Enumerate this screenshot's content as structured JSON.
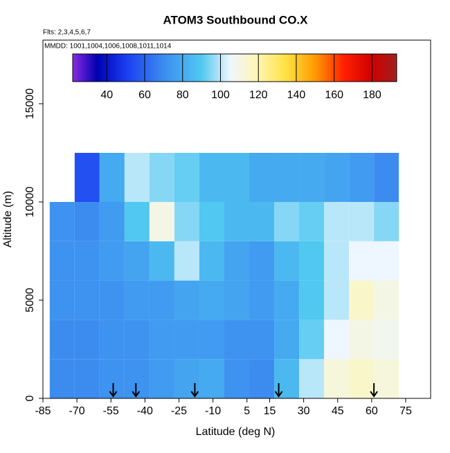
{
  "chart_data": {
    "type": "heatmap",
    "title": "ATOM3 Southbound CO.X",
    "subtitle": "Flts: 2,3,4,5,6,7",
    "annotation": "MMDD: 1001,1004,1006,1008,1011,1014",
    "x_label": "Latitude (deg N)",
    "y_label": "Altitude (m)",
    "xlim": [
      -85,
      86
    ],
    "ylim": [
      0,
      18240
    ],
    "xticks": [
      -85,
      -70,
      -55,
      -40,
      -25,
      -10,
      5,
      15,
      30,
      45,
      60,
      75
    ],
    "yticks": [
      0,
      5000,
      10000,
      15000
    ],
    "lat_edges": [
      -82,
      -71,
      -60,
      -49,
      -38,
      -27,
      -16,
      -5,
      6,
      17,
      28,
      39,
      50,
      61,
      72
    ],
    "alt_edges": [
      0,
      2000,
      4000,
      6000,
      8000,
      10000,
      12500
    ],
    "values": [
      [
        70,
        70,
        72,
        72,
        75,
        78,
        80,
        72,
        70,
        85,
        100,
        112,
        115,
        112
      ],
      [
        70,
        70,
        72,
        72,
        75,
        75,
        75,
        72,
        72,
        80,
        92,
        105,
        110,
        108
      ],
      [
        72,
        72,
        72,
        75,
        75,
        78,
        80,
        78,
        75,
        80,
        90,
        100,
        115,
        110
      ],
      [
        72,
        72,
        75,
        78,
        85,
        100,
        85,
        78,
        75,
        85,
        90,
        100,
        105,
        105
      ],
      [
        72,
        70,
        75,
        90,
        110,
        95,
        90,
        85,
        85,
        95,
        92,
        100,
        100,
        95
      ],
      [
        null,
        55,
        80,
        100,
        95,
        92,
        85,
        85,
        80,
        80,
        80,
        78,
        75,
        70
      ]
    ],
    "markers_lat": [
      -54,
      -44,
      -18,
      19,
      61
    ],
    "colorbar": {
      "range": [
        22,
        193
      ],
      "ticks": [
        40,
        60,
        80,
        100,
        120,
        140,
        160,
        180
      ]
    },
    "colorscale": [
      [
        22,
        "#8a2be2"
      ],
      [
        35,
        "#0000b0"
      ],
      [
        50,
        "#1a3cf0"
      ],
      [
        70,
        "#3c8cf0"
      ],
      [
        90,
        "#50c8f0"
      ],
      [
        105,
        "#eef6ff"
      ],
      [
        120,
        "#fff6b0"
      ],
      [
        135,
        "#ffe040"
      ],
      [
        150,
        "#ff9a00"
      ],
      [
        165,
        "#ff2000"
      ],
      [
        180,
        "#d00000"
      ],
      [
        193,
        "#a02020"
      ]
    ]
  }
}
